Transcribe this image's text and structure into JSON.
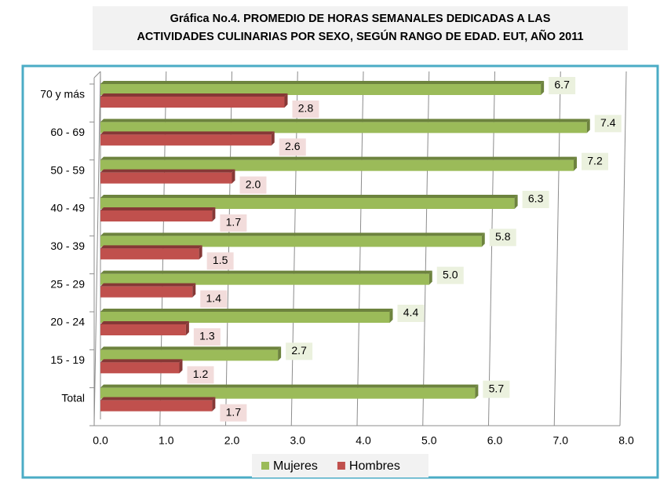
{
  "chart_data": {
    "type": "bar",
    "orientation": "horizontal",
    "title": [
      "Gráfica No.4. PROMEDIO DE HORAS SEMANALES DEDICADAS A LAS",
      "ACTIVIDADES CULINARIAS  POR SEXO, SEGÚN RANGO DE EDAD. EUT, AÑO 2011"
    ],
    "categories": [
      "70 y más",
      "60 - 69",
      "50 - 59",
      "40 - 49",
      "30 - 39",
      "25 - 29",
      "20 - 24",
      "15 - 19",
      "Total"
    ],
    "series": [
      {
        "name": "Mujeres",
        "color": "#9bbb59",
        "values": [
          6.7,
          7.4,
          7.2,
          6.3,
          5.8,
          5.0,
          4.4,
          2.7,
          5.7
        ],
        "value_labels": [
          "6.7",
          "7.4",
          "7.2",
          "6.3",
          "5.8",
          "5.0",
          "4.4",
          "2.7",
          "5.7"
        ]
      },
      {
        "name": "Hombres",
        "color": "#c0504d",
        "values": [
          2.8,
          2.6,
          2.0,
          1.7,
          1.5,
          1.4,
          1.3,
          1.2,
          1.7
        ],
        "value_labels": [
          "2.8",
          "2.6",
          "2.0",
          "1.7",
          "1.5",
          "1.4",
          "1.3",
          "1.2",
          "1.7"
        ]
      }
    ],
    "xlim": [
      0,
      8
    ],
    "xticks": [
      {
        "value": 0,
        "label": "0.0"
      },
      {
        "value": 1,
        "label": "1.0"
      },
      {
        "value": 2,
        "label": "2.0"
      },
      {
        "value": 3,
        "label": "3.0"
      },
      {
        "value": 4,
        "label": "4.0"
      },
      {
        "value": 5,
        "label": "5.0"
      },
      {
        "value": 6,
        "label": "6.0"
      },
      {
        "value": 7,
        "label": "7.0"
      },
      {
        "value": 8,
        "label": "8.0"
      }
    ],
    "grid": true,
    "legend": "bottom"
  }
}
